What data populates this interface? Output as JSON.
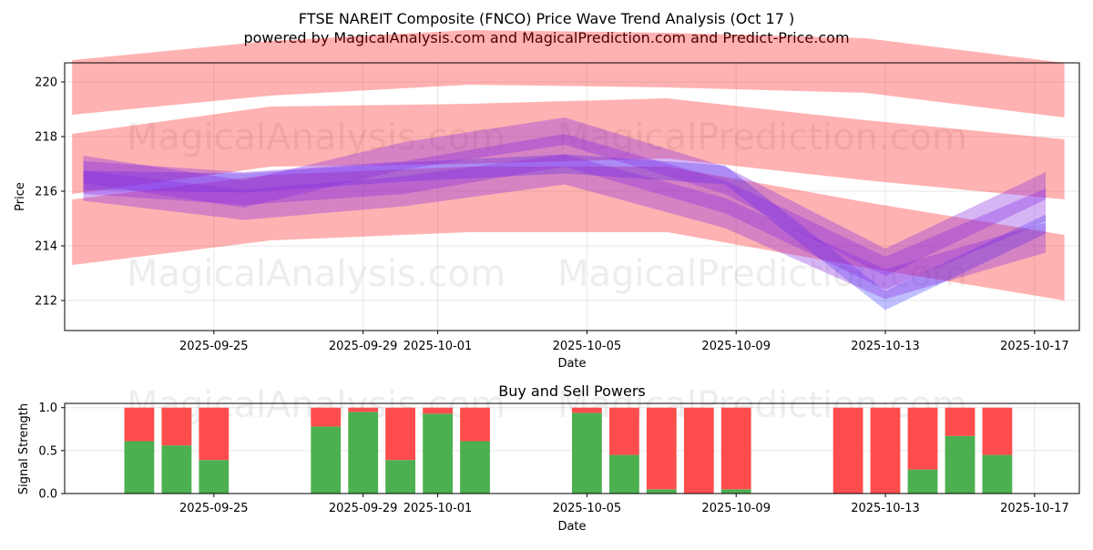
{
  "title_line1": "FTSE NAREIT Composite (FNCO) Price Wave Trend Analysis (Oct 17 )",
  "title_line2": "powered by MagicalAnalysis.com and MagicalPrediction.com and Predict-Price.com",
  "watermarks": [
    "MagicalAnalysis.com",
    "MagicalPrediction.com",
    "MagicalAnalysis.com",
    "MagicalPrediction.com",
    "MagicalAnalysis.com",
    "MagicalPrediction.com"
  ],
  "colors": {
    "band_red": "#ff0000",
    "band_blue": "#0000ff",
    "band_purple": "#8a2be2",
    "buy_green": "#4caf50",
    "sell_red": "#ff4d4d"
  },
  "chart_data": [
    {
      "type": "line",
      "name": "price-wave-trend",
      "title": "",
      "xlabel": "Date",
      "ylabel": "Price",
      "grid": true,
      "xlim": [
        -3,
        24.2
      ],
      "ylim": [
        210.9,
        220.7
      ],
      "x_ticks": [
        {
          "pos": 1,
          "label": "2025-09-25"
        },
        {
          "pos": 5,
          "label": "2025-09-29"
        },
        {
          "pos": 7,
          "label": "2025-10-01"
        },
        {
          "pos": 11,
          "label": "2025-10-05"
        },
        {
          "pos": 15,
          "label": "2025-10-09"
        },
        {
          "pos": 19,
          "label": "2025-10-13"
        },
        {
          "pos": 23,
          "label": "2025-10-17"
        }
      ],
      "y_ticks": [
        212,
        214,
        216,
        218,
        220
      ],
      "red_bands": [
        {
          "x": [
            -2.8,
            23.8
          ],
          "center": [
            219.8,
            220.5,
            220.9,
            220.8,
            220.6,
            219.7
          ],
          "half_width": 1.0
        },
        {
          "x": [
            -2.8,
            23.8
          ],
          "center": [
            217.0,
            218.0,
            218.1,
            218.3,
            217.5,
            216.8
          ],
          "half_width": 1.1
        },
        {
          "x": [
            -2.8,
            23.8
          ],
          "center": [
            214.5,
            215.4,
            215.7,
            215.7,
            214.4,
            213.2
          ],
          "half_width": 1.2
        }
      ],
      "blue_bands": [
        {
          "x": [
            -2.5,
            23.3
          ],
          "center": [
            216.4,
            216.3,
            216.7,
            217.0,
            216.6,
            212.0,
            214.8
          ],
          "half_width": 0.35
        }
      ],
      "purple_bands": [
        {
          "x": [
            -2.5,
            23.3
          ],
          "center": [
            216.8,
            215.9,
            217.3,
            218.2,
            216.4,
            213.4,
            216.2
          ],
          "half_width": 0.5
        },
        {
          "x": [
            -2.5,
            23.3
          ],
          "center": [
            216.2,
            215.5,
            216.0,
            216.8,
            215.2,
            212.6,
            214.3
          ],
          "half_width": 0.55
        },
        {
          "x": [
            -2.5,
            23.3
          ],
          "center": [
            216.5,
            216.1,
            216.5,
            217.5,
            215.8,
            213.0,
            215.5
          ],
          "half_width": 0.6
        }
      ]
    },
    {
      "type": "bar",
      "name": "buy-and-sell-powers",
      "title": "Buy and Sell Powers",
      "xlabel": "Date",
      "ylabel": "Signal Strength",
      "grid": true,
      "xlim": [
        -3,
        24.2
      ],
      "ylim": [
        0,
        1.05
      ],
      "y_ticks": [
        0.0,
        0.5,
        1.0
      ],
      "x_ticks": [
        {
          "pos": 1,
          "label": "2025-09-25"
        },
        {
          "pos": 5,
          "label": "2025-09-29"
        },
        {
          "pos": 7,
          "label": "2025-10-01"
        },
        {
          "pos": 11,
          "label": "2025-10-05"
        },
        {
          "pos": 15,
          "label": "2025-10-09"
        },
        {
          "pos": 19,
          "label": "2025-10-13"
        },
        {
          "pos": 23,
          "label": "2025-10-17"
        }
      ],
      "x": [
        -1,
        0,
        1,
        4,
        5,
        6,
        7,
        8,
        11,
        12,
        13,
        14,
        15,
        18,
        19,
        20,
        21,
        22
      ],
      "buy": [
        0.61,
        0.56,
        0.39,
        0.78,
        0.95,
        0.39,
        0.93,
        0.61,
        0.94,
        0.45,
        0.05,
        0.0,
        0.05,
        0.0,
        0.0,
        0.28,
        0.67,
        0.45
      ],
      "sell": [
        0.39,
        0.44,
        0.61,
        0.22,
        0.05,
        0.61,
        0.07,
        0.39,
        0.06,
        0.55,
        0.95,
        1.0,
        0.95,
        1.0,
        1.0,
        0.72,
        0.33,
        0.55
      ]
    }
  ]
}
